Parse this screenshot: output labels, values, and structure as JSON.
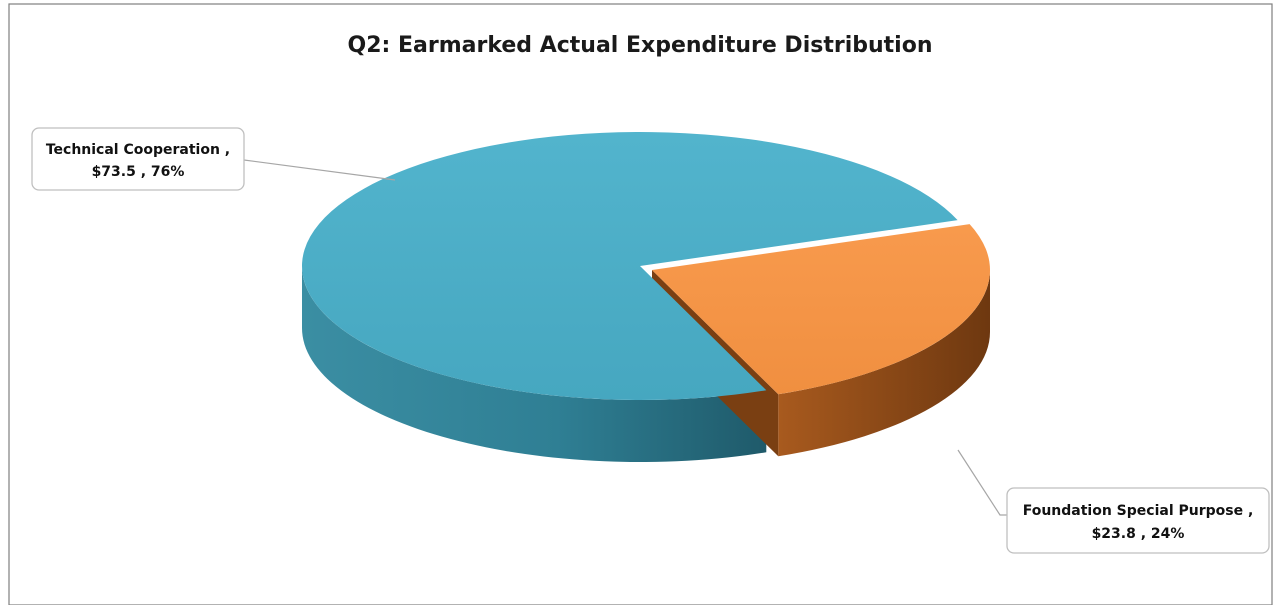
{
  "page_heading_fragment": "",
  "chart_data": {
    "type": "pie",
    "title": "Q2: Earmarked Actual Expenditure Distribution",
    "series": [
      {
        "name": "Technical Cooperation",
        "value": 73.5,
        "percent": 76,
        "label_line1": "Technical Cooperation ,",
        "label_line2": "$73.5 , 76%",
        "color": "#4BACC6"
      },
      {
        "name": "Foundation Special Purpose",
        "value": 23.8,
        "percent": 24,
        "label_line1": "Foundation Special Purpose ,",
        "label_line2": "$23.8 , 24%",
        "color": "#F79646"
      }
    ],
    "style": "3d-exploded",
    "legend": "none"
  }
}
